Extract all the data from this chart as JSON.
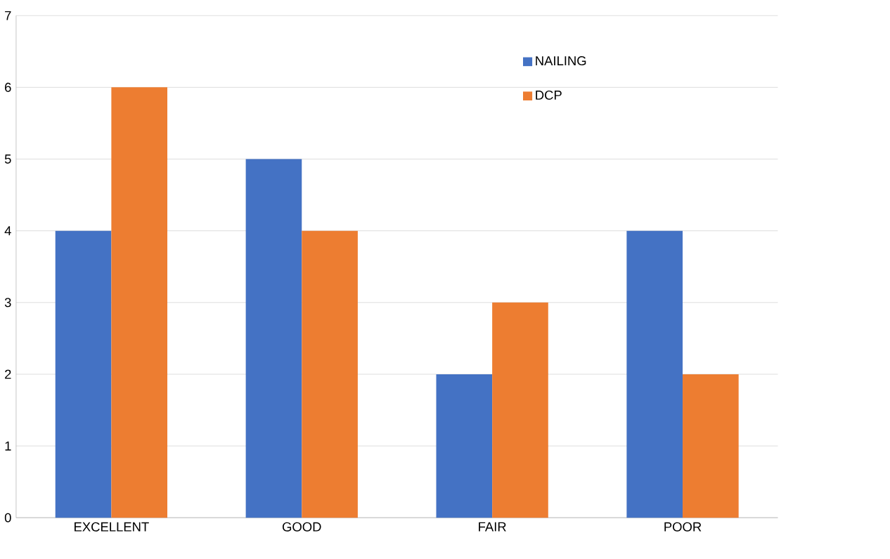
{
  "chart_data": {
    "type": "bar",
    "categories": [
      "EXCELLENT",
      "GOOD",
      "FAIR",
      "POOR"
    ],
    "series": [
      {
        "name": "NAILING",
        "color": "#4472c4",
        "values": [
          4,
          5,
          2,
          4
        ]
      },
      {
        "name": "DCP",
        "color": "#ed7d31",
        "values": [
          6,
          4,
          3,
          2
        ]
      }
    ],
    "ylim": [
      0,
      7
    ],
    "yticks": [
      0,
      1,
      2,
      3,
      4,
      5,
      6,
      7
    ],
    "grid": "y",
    "legend": "top right"
  }
}
